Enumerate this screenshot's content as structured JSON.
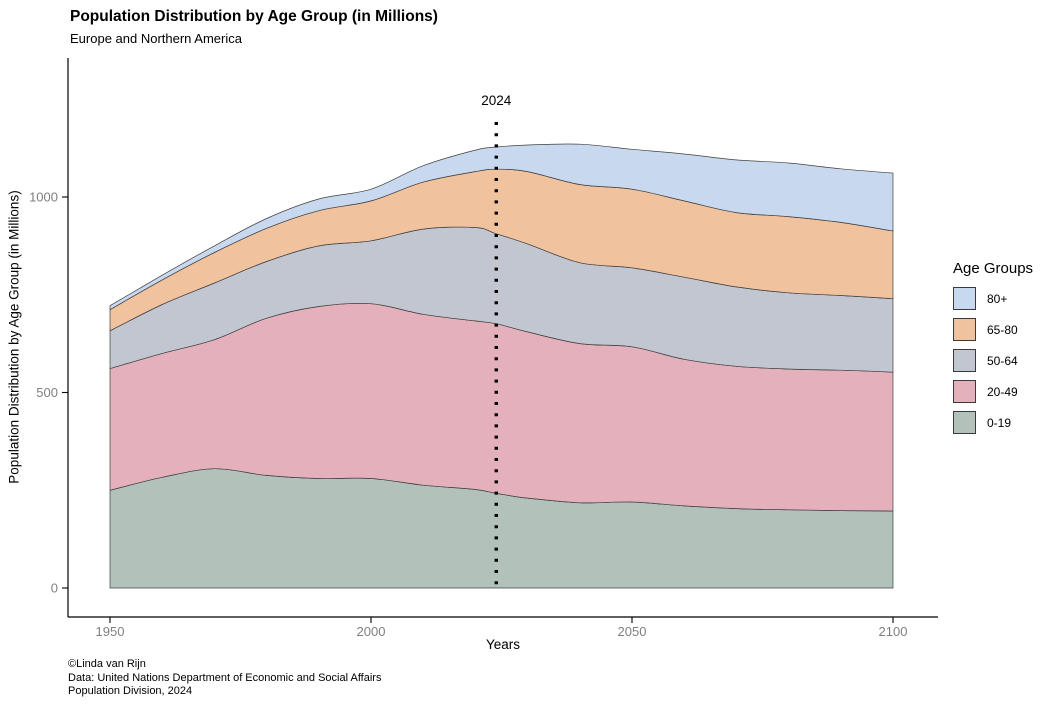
{
  "title": "Population Distribution by Age Group (in Millions)",
  "subtitle": "Europe and Northern America",
  "axes": {
    "x_label": "Years",
    "y_label": "Population Distribution by Age Group (in Millions)",
    "x_ticks": [
      1950,
      2000,
      2050,
      2100
    ],
    "y_ticks": [
      0,
      500,
      1000
    ]
  },
  "legend": {
    "title": "Age Groups",
    "items": [
      {
        "label": "80+",
        "color": "#c8d8ef"
      },
      {
        "label": "65-80",
        "color": "#f0c29d"
      },
      {
        "label": "50-64",
        "color": "#c2c6d0"
      },
      {
        "label": "20-49",
        "color": "#e3b0bb"
      },
      {
        "label": "0-19",
        "color": "#b2c2bb"
      }
    ]
  },
  "annotation": {
    "label": "2024",
    "year": 2024
  },
  "caption": [
    "©Linda van Rijn",
    "Data: United Nations Department of Economic and Social Affairs",
    "Population Division, 2024"
  ],
  "colors": {
    "outline": "#3f3f3f",
    "axis": "#000000",
    "tick_text": "#7f7f7f",
    "vline": "#000000"
  },
  "chart_data": {
    "type": "area",
    "stacked": true,
    "title": "Population Distribution by Age Group (in Millions)",
    "subtitle": "Europe and Northern America",
    "xlabel": "Years",
    "ylabel": "Population Distribution by Age Group (in Millions)",
    "x_range": [
      1950,
      2100
    ],
    "ylim": [
      0,
      1190
    ],
    "grid": false,
    "legend_position": "right",
    "vline": {
      "x": 2024,
      "label": "2024",
      "style": "dotted"
    },
    "x": [
      1950,
      1960,
      1970,
      1980,
      1990,
      2000,
      2010,
      2020,
      2024,
      2030,
      2040,
      2050,
      2060,
      2070,
      2080,
      2090,
      2100
    ],
    "series": [
      {
        "name": "0-19",
        "color": "#b2c2bb",
        "values": [
          250,
          283,
          305,
          288,
          280,
          280,
          263,
          252,
          242,
          230,
          218,
          220,
          210,
          203,
          200,
          198,
          197
        ]
      },
      {
        "name": "20-49",
        "color": "#e3b0bb",
        "values": [
          311,
          317,
          330,
          402,
          440,
          447,
          437,
          431,
          434,
          425,
          407,
          397,
          375,
          364,
          360,
          359,
          355
        ]
      },
      {
        "name": "50-64",
        "color": "#c2c6d0",
        "values": [
          97,
          125,
          145,
          145,
          155,
          161,
          218,
          239,
          230,
          225,
          207,
          202,
          210,
          203,
          195,
          191,
          188
        ]
      },
      {
        "name": "65-80",
        "color": "#f0c29d",
        "values": [
          54,
          63,
          78,
          85,
          90,
          102,
          120,
          143,
          165,
          185,
          200,
          201,
          195,
          190,
          195,
          187,
          173
        ]
      },
      {
        "name": "80+",
        "color": "#c8d8ef",
        "values": [
          10,
          12,
          17,
          25,
          30,
          30,
          42,
          55,
          57,
          68,
          103,
          102,
          120,
          135,
          137,
          137,
          148
        ]
      }
    ]
  }
}
